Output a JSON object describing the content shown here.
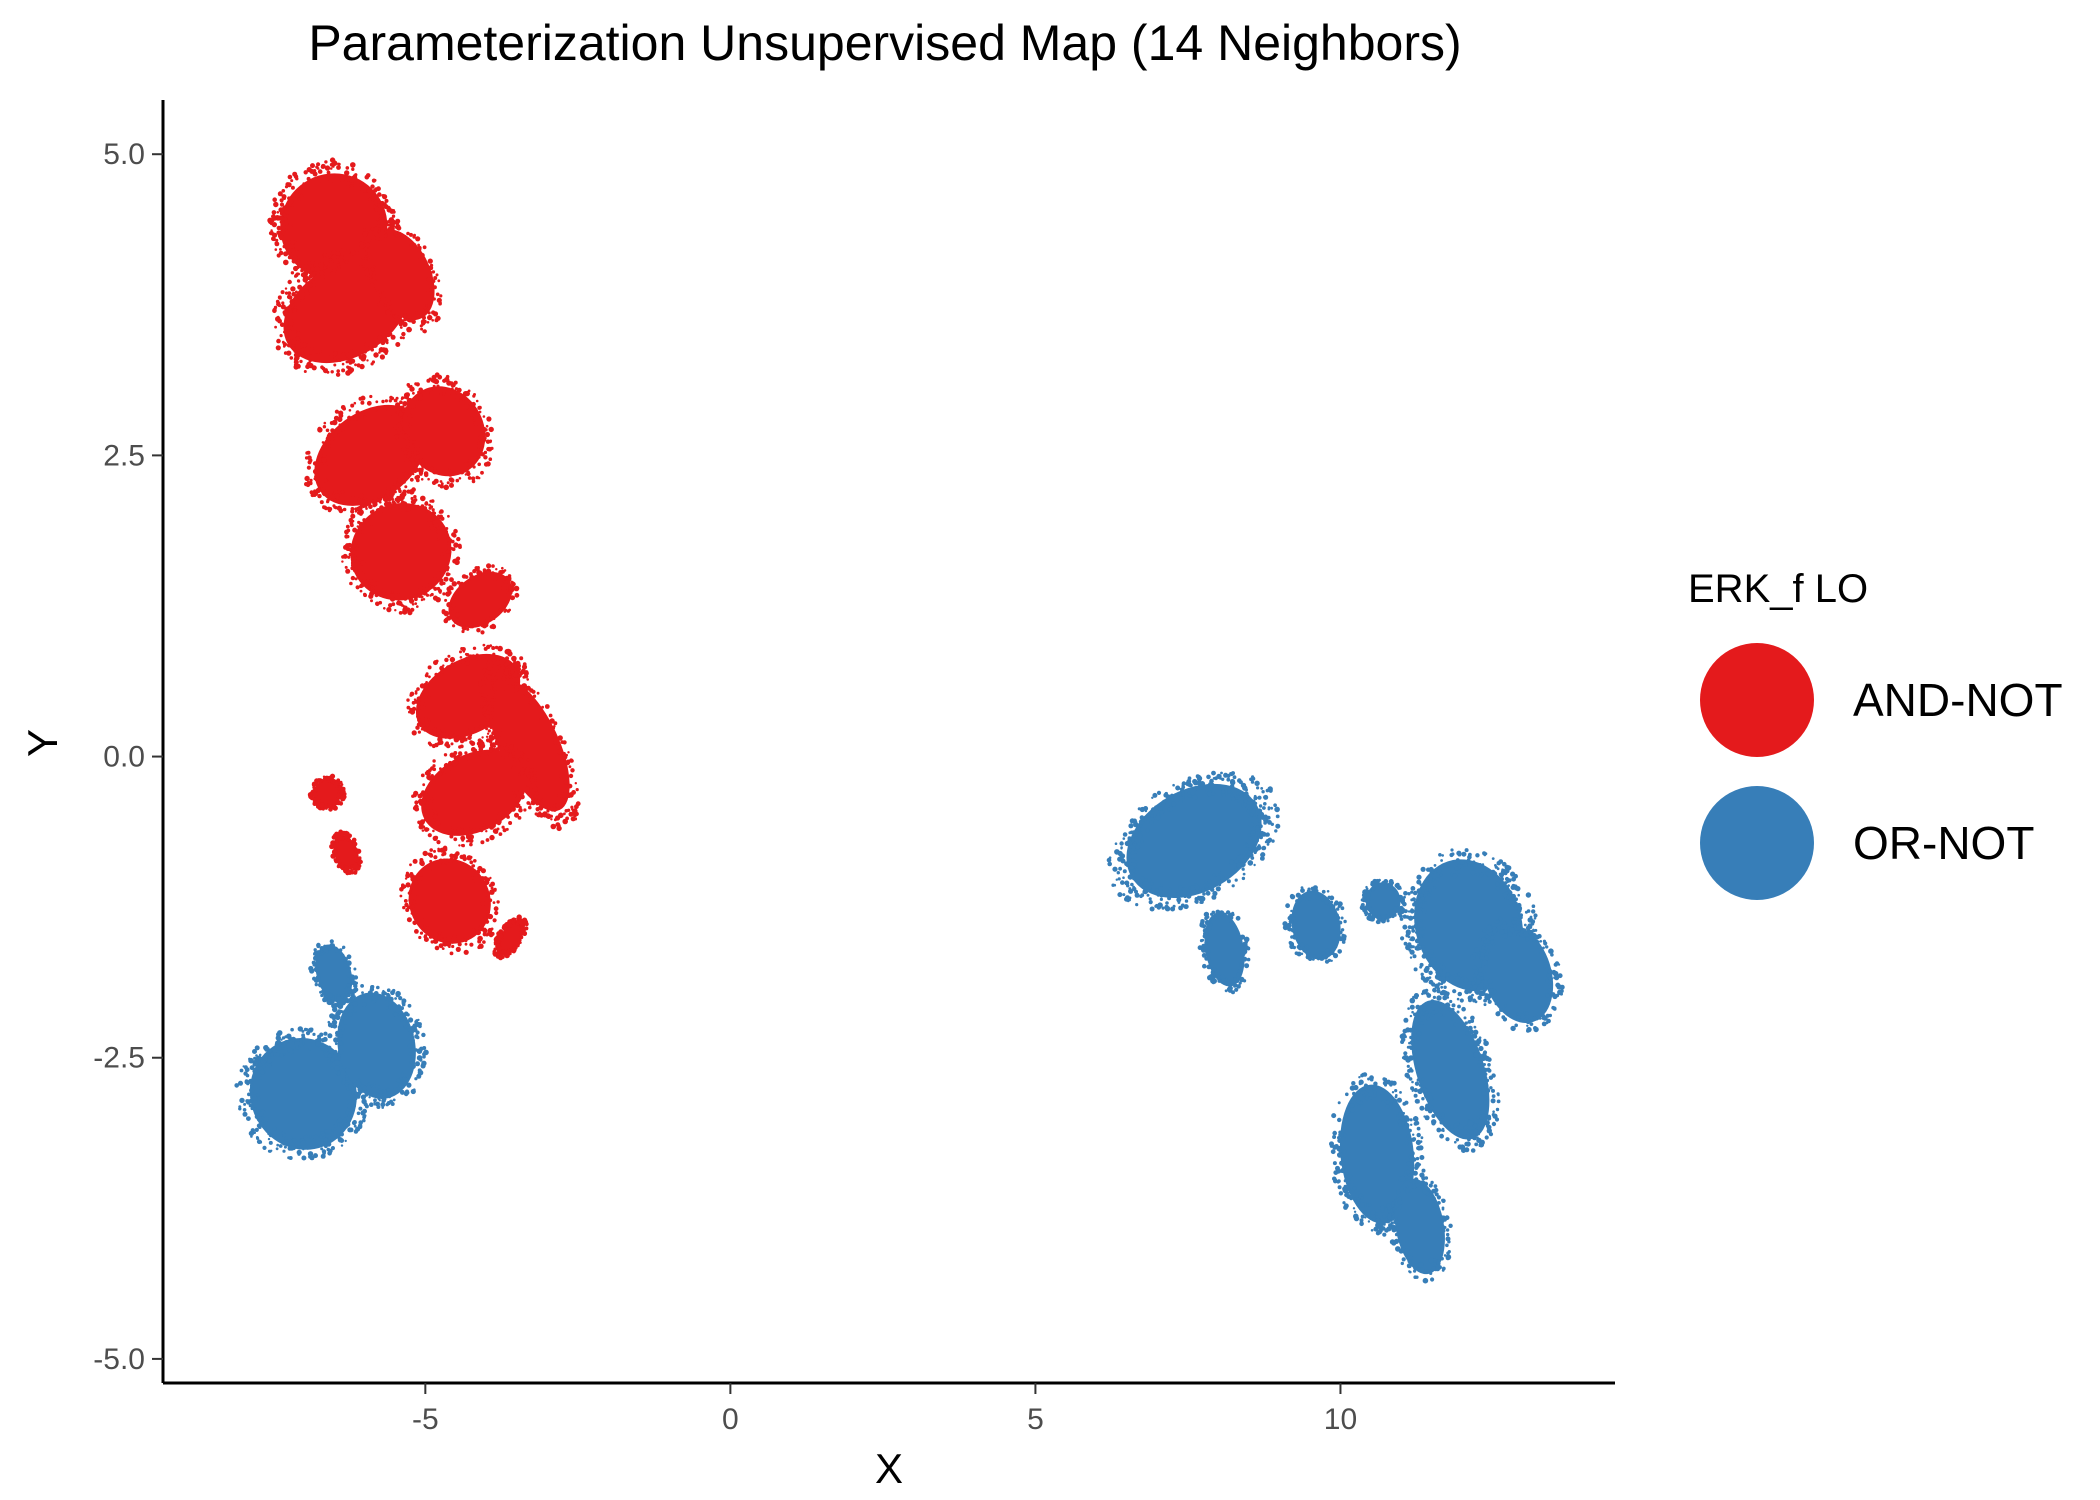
{
  "chart_data": {
    "type": "scatter",
    "title": "Parameterization Unsupervised Map (14 Neighbors)",
    "xlabel": "X",
    "ylabel": "Y",
    "xlim": [
      -9.3,
      14.5
    ],
    "ylim": [
      -5.2,
      5.45
    ],
    "x_ticks": [
      {
        "value": -5,
        "label": "-5"
      },
      {
        "value": 0,
        "label": "0"
      },
      {
        "value": 5,
        "label": "5"
      },
      {
        "value": 10,
        "label": "10"
      }
    ],
    "y_ticks": [
      {
        "value": 5.0,
        "label": "5.0"
      },
      {
        "value": 2.5,
        "label": "2.5"
      },
      {
        "value": 0.0,
        "label": "0.0"
      },
      {
        "value": -2.5,
        "label": "-2.5"
      },
      {
        "value": -5.0,
        "label": "-5.0"
      }
    ],
    "grid": false,
    "legend": {
      "title": "ERK_f LO",
      "placement": "right"
    },
    "series": [
      {
        "name": "AND-NOT",
        "color": "#E41A1C",
        "clusters": [
          {
            "cx": -6.5,
            "cy": 4.4,
            "rx": 1.0,
            "ry": 0.55,
            "rot": 28
          },
          {
            "cx": -6.3,
            "cy": 3.7,
            "rx": 1.25,
            "ry": 0.48,
            "rot": 30
          },
          {
            "cx": -5.4,
            "cy": 4.0,
            "rx": 0.55,
            "ry": 0.5,
            "rot": 25
          },
          {
            "cx": -5.9,
            "cy": 2.5,
            "rx": 1.15,
            "ry": 0.45,
            "rot": 36
          },
          {
            "cx": -4.7,
            "cy": 2.7,
            "rx": 0.75,
            "ry": 0.48,
            "rot": 28
          },
          {
            "cx": -5.4,
            "cy": 1.7,
            "rx": 0.95,
            "ry": 0.5,
            "rot": 25
          },
          {
            "cx": -4.1,
            "cy": 1.3,
            "rx": 0.65,
            "ry": 0.25,
            "rot": 35
          },
          {
            "cx": -4.3,
            "cy": 0.5,
            "rx": 1.05,
            "ry": 0.38,
            "rot": 30
          },
          {
            "cx": -3.3,
            "cy": 0.1,
            "rx": 0.55,
            "ry": 0.75,
            "rot": 25
          },
          {
            "cx": -4.2,
            "cy": -0.3,
            "rx": 1.05,
            "ry": 0.4,
            "rot": 28
          },
          {
            "cx": -4.6,
            "cy": -1.2,
            "rx": 0.75,
            "ry": 0.45,
            "rot": 30
          },
          {
            "cx": -6.6,
            "cy": -0.3,
            "rx": 0.28,
            "ry": 0.14,
            "rot": 30
          },
          {
            "cx": -6.3,
            "cy": -0.8,
            "rx": 0.22,
            "ry": 0.18,
            "rot": 20
          },
          {
            "cx": -3.6,
            "cy": -1.5,
            "rx": 0.38,
            "ry": 0.1,
            "rot": 55
          }
        ]
      },
      {
        "name": "OR-NOT",
        "color": "#377EB8",
        "clusters": [
          {
            "cx": -7.0,
            "cy": -2.8,
            "rx": 1.05,
            "ry": 0.55,
            "rot": -68
          },
          {
            "cx": -5.8,
            "cy": -2.4,
            "rx": 1.0,
            "ry": 0.4,
            "rot": -78
          },
          {
            "cx": -6.5,
            "cy": -1.8,
            "rx": 0.55,
            "ry": 0.18,
            "rot": -75
          },
          {
            "cx": 7.6,
            "cy": -0.7,
            "rx": 0.95,
            "ry": 0.75,
            "rot": -60
          },
          {
            "cx": 8.1,
            "cy": -1.6,
            "rx": 0.7,
            "ry": 0.2,
            "rot": -80
          },
          {
            "cx": 9.6,
            "cy": -1.4,
            "rx": 0.65,
            "ry": 0.25,
            "rot": -78
          },
          {
            "cx": 10.7,
            "cy": -1.2,
            "rx": 0.35,
            "ry": 0.18,
            "rot": -85
          },
          {
            "cx": 12.1,
            "cy": -1.4,
            "rx": 1.25,
            "ry": 0.55,
            "rot": -72
          },
          {
            "cx": 12.9,
            "cy": -1.8,
            "rx": 0.95,
            "ry": 0.35,
            "rot": -72
          },
          {
            "cx": 11.8,
            "cy": -2.6,
            "rx": 1.35,
            "ry": 0.35,
            "rot": -72
          },
          {
            "cx": 10.6,
            "cy": -3.3,
            "rx": 1.3,
            "ry": 0.38,
            "rot": -84
          },
          {
            "cx": 11.3,
            "cy": -3.9,
            "rx": 0.9,
            "ry": 0.25,
            "rot": -80
          }
        ]
      }
    ]
  }
}
